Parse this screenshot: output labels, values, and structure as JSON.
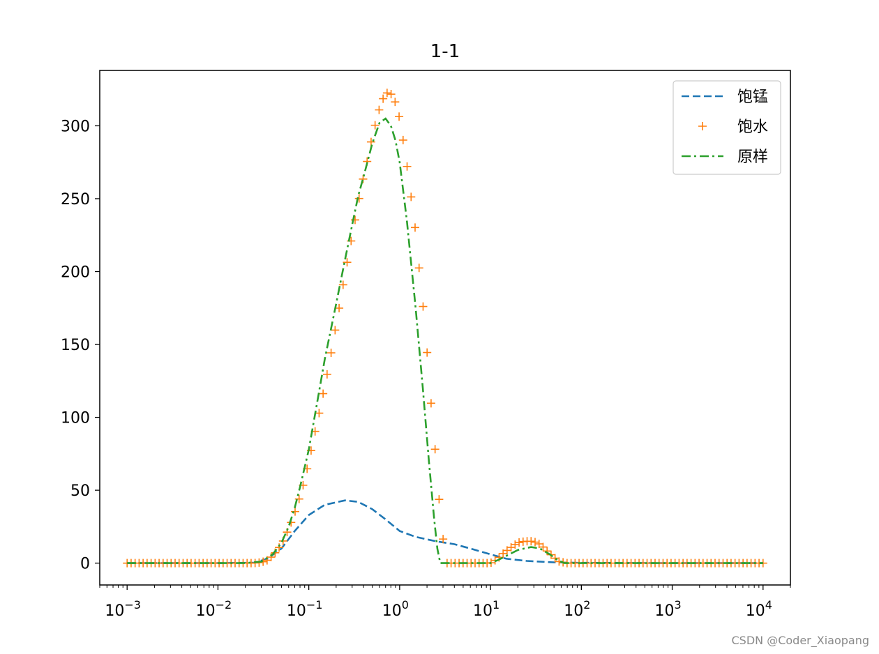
{
  "chart_data": {
    "type": "line",
    "title": "1-1",
    "xlabel": "",
    "ylabel": "",
    "xscale": "log",
    "xlim": [
      0.0005,
      20000
    ],
    "ylim": [
      -15,
      338
    ],
    "grid": false,
    "legend_position": "top-right",
    "x_ticks": [
      0.001,
      0.01,
      0.1,
      1,
      10,
      100,
      1000,
      10000
    ],
    "x_tick_labels": [
      {
        "base": "10",
        "exp": "−3"
      },
      {
        "base": "10",
        "exp": "−2"
      },
      {
        "base": "10",
        "exp": "−1"
      },
      {
        "base": "10",
        "exp": "0"
      },
      {
        "base": "10",
        "exp": "1"
      },
      {
        "base": "10",
        "exp": "2"
      },
      {
        "base": "10",
        "exp": "3"
      },
      {
        "base": "10",
        "exp": "4"
      }
    ],
    "y_ticks": [
      0,
      50,
      100,
      150,
      200,
      250,
      300
    ],
    "y_tick_labels": [
      "0",
      "50",
      "100",
      "150",
      "200",
      "250",
      "300"
    ],
    "series": [
      {
        "name": "饱锰",
        "style": "dashed",
        "color": "#1f77b4",
        "points": [
          [
            0.001,
            0
          ],
          [
            0.01,
            0
          ],
          [
            0.025,
            0.3
          ],
          [
            0.035,
            3
          ],
          [
            0.05,
            10
          ],
          [
            0.07,
            22
          ],
          [
            0.1,
            33
          ],
          [
            0.15,
            40
          ],
          [
            0.25,
            43
          ],
          [
            0.35,
            42
          ],
          [
            0.5,
            37
          ],
          [
            0.7,
            30
          ],
          [
            1.0,
            22
          ],
          [
            1.5,
            18
          ],
          [
            2.5,
            15
          ],
          [
            4,
            13
          ],
          [
            6,
            10
          ],
          [
            10,
            6
          ],
          [
            15,
            3
          ],
          [
            25,
            1.5
          ],
          [
            50,
            0.5
          ],
          [
            100,
            0.2
          ],
          [
            1000,
            0
          ],
          [
            10000,
            0
          ]
        ]
      },
      {
        "name": "饱水",
        "style": "markers",
        "marker": "+",
        "color": "#ff7f0e",
        "points": [
          [
            0.001,
            0
          ],
          [
            0.025,
            0
          ],
          [
            0.03,
            0.5
          ],
          [
            0.035,
            2
          ],
          [
            0.04,
            5
          ],
          [
            0.045,
            9
          ],
          [
            0.05,
            13
          ],
          [
            0.055,
            18
          ],
          [
            0.06,
            24
          ],
          [
            0.066,
            30
          ],
          [
            0.073,
            38
          ],
          [
            0.08,
            46
          ],
          [
            0.088,
            55
          ],
          [
            0.096,
            65
          ],
          [
            0.105,
            76
          ],
          [
            0.115,
            88
          ],
          [
            0.127,
            100
          ],
          [
            0.14,
            113
          ],
          [
            0.155,
            126
          ],
          [
            0.17,
            139
          ],
          [
            0.185,
            152
          ],
          [
            0.2,
            164
          ],
          [
            0.22,
            178
          ],
          [
            0.24,
            192
          ],
          [
            0.265,
            207
          ],
          [
            0.29,
            220
          ],
          [
            0.32,
            234
          ],
          [
            0.35,
            247
          ],
          [
            0.38,
            259
          ],
          [
            0.42,
            270
          ],
          [
            0.46,
            282
          ],
          [
            0.5,
            293
          ],
          [
            0.55,
            303
          ],
          [
            0.6,
            312
          ],
          [
            0.65,
            318
          ],
          [
            0.7,
            322
          ],
          [
            0.75,
            323
          ],
          [
            0.8,
            322
          ],
          [
            0.87,
            318
          ],
          [
            0.95,
            312
          ],
          [
            1.04,
            298
          ],
          [
            1.14,
            283
          ],
          [
            1.24,
            267
          ],
          [
            1.35,
            249
          ],
          [
            1.48,
            230
          ],
          [
            1.6,
            208
          ],
          [
            1.75,
            186
          ],
          [
            1.9,
            162
          ],
          [
            2.05,
            137
          ],
          [
            2.2,
            112
          ],
          [
            2.4,
            87
          ],
          [
            2.55,
            63
          ],
          [
            2.75,
            40
          ],
          [
            3.2,
            0
          ],
          [
            10,
            0
          ],
          [
            12,
            3
          ],
          [
            14,
            7
          ],
          [
            17,
            11
          ],
          [
            20,
            14
          ],
          [
            24,
            15
          ],
          [
            28,
            15
          ],
          [
            33,
            14
          ],
          [
            38,
            11
          ],
          [
            44,
            7
          ],
          [
            50,
            4
          ],
          [
            57,
            1
          ],
          [
            70,
            0
          ],
          [
            100,
            0
          ],
          [
            1000,
            0
          ],
          [
            10000,
            0
          ]
        ],
        "marker_count": 160
      },
      {
        "name": "原样",
        "style": "dashdot",
        "color": "#2ca02c",
        "points": [
          [
            0.001,
            0
          ],
          [
            0.02,
            0
          ],
          [
            0.03,
            1
          ],
          [
            0.04,
            6
          ],
          [
            0.05,
            14
          ],
          [
            0.06,
            25
          ],
          [
            0.07,
            38
          ],
          [
            0.08,
            52
          ],
          [
            0.1,
            78
          ],
          [
            0.125,
            112
          ],
          [
            0.15,
            140
          ],
          [
            0.2,
            178
          ],
          [
            0.25,
            208
          ],
          [
            0.3,
            232
          ],
          [
            0.35,
            252
          ],
          [
            0.4,
            265
          ],
          [
            0.5,
            288
          ],
          [
            0.6,
            302
          ],
          [
            0.7,
            305
          ],
          [
            0.8,
            300
          ],
          [
            0.9,
            290
          ],
          [
            1.0,
            275
          ],
          [
            1.2,
            235
          ],
          [
            1.5,
            175
          ],
          [
            1.8,
            120
          ],
          [
            2.1,
            70
          ],
          [
            2.4,
            30
          ],
          [
            2.6,
            10
          ],
          [
            2.8,
            0
          ],
          [
            10,
            0
          ],
          [
            12,
            2
          ],
          [
            15,
            5
          ],
          [
            20,
            9
          ],
          [
            28,
            11
          ],
          [
            35,
            10
          ],
          [
            45,
            6
          ],
          [
            55,
            2
          ],
          [
            65,
            0
          ],
          [
            100,
            0
          ],
          [
            1000,
            0
          ],
          [
            10000,
            0
          ]
        ]
      }
    ]
  },
  "watermark": "CSDN @Coder_Xiaopang"
}
